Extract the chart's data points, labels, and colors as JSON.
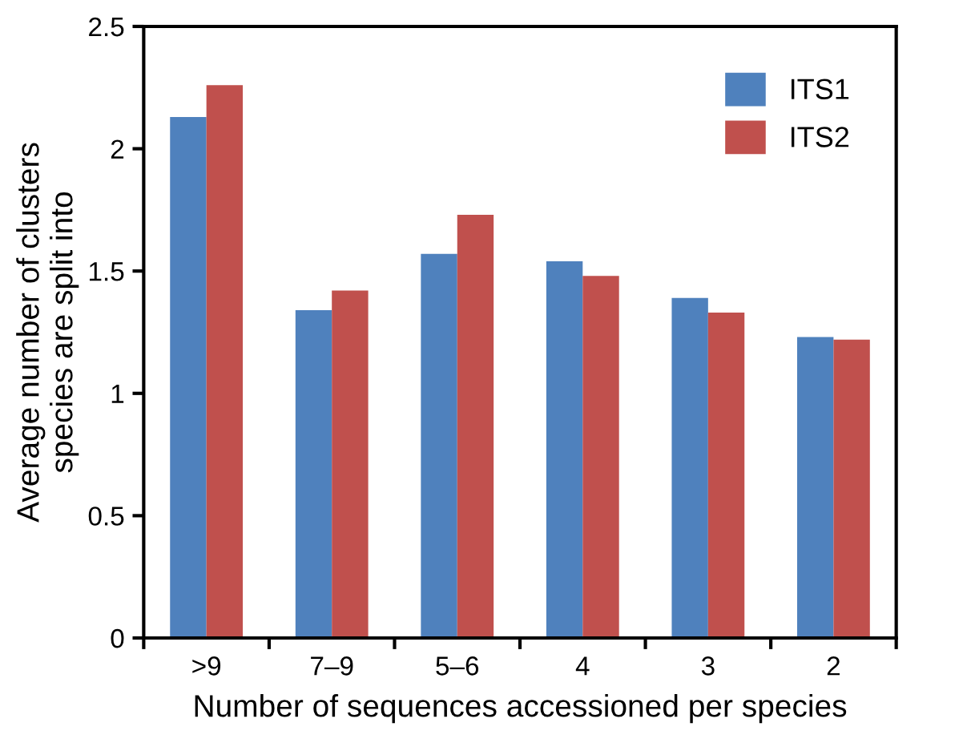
{
  "chart_data": {
    "type": "bar",
    "xlabel": "Number of sequences accessioned per species",
    "ylabel": "Average number of clusters\nspecies are split into",
    "categories": [
      ">9",
      "7–9",
      "5–6",
      "4",
      "3",
      "2"
    ],
    "series": [
      {
        "name": "ITS1",
        "color": "#4f81bd",
        "values": [
          2.13,
          1.34,
          1.57,
          1.54,
          1.39,
          1.23
        ]
      },
      {
        "name": "ITS2",
        "color": "#c0504d",
        "values": [
          2.26,
          1.42,
          1.73,
          1.48,
          1.33,
          1.22
        ]
      }
    ],
    "ylim": [
      0,
      2.5
    ],
    "yticks": [
      0,
      0.5,
      1,
      1.5,
      2,
      2.5
    ],
    "grid": false,
    "legend": "top right"
  }
}
